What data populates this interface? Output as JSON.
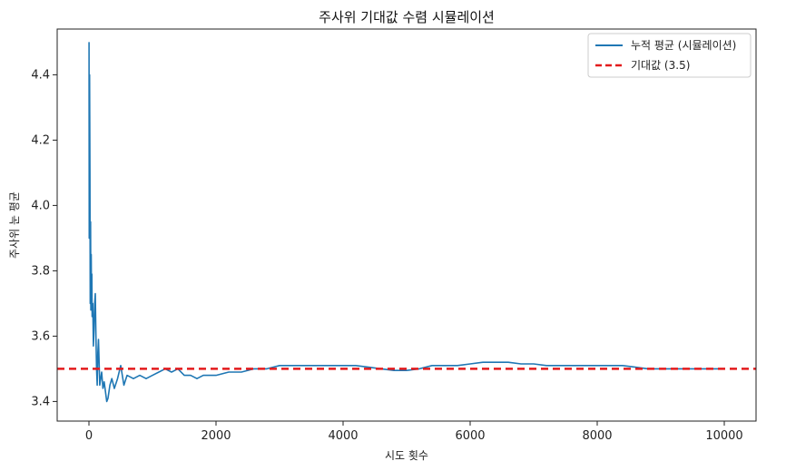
{
  "chart_data": {
    "type": "line",
    "title": "주사위 기대값 수렴 시뮬레이션",
    "xlabel": "시도 횟수",
    "ylabel": "주사위 눈 평균",
    "xlim": [
      -500,
      10500
    ],
    "ylim": [
      3.34,
      4.54
    ],
    "xticks": [
      "0",
      "2000",
      "4000",
      "6000",
      "8000",
      "10000"
    ],
    "yticks": [
      "3.4",
      "3.6",
      "3.8",
      "4.0",
      "4.2",
      "4.4"
    ],
    "legend_position": "top-right",
    "colors": {
      "series": "#1f77b4",
      "expected": "#e31a1c"
    },
    "series": [
      {
        "name": "누적 평균 (시뮬레이션)",
        "style": "solid",
        "x": [
          1,
          5,
          10,
          15,
          20,
          25,
          30,
          35,
          40,
          45,
          50,
          60,
          70,
          80,
          90,
          100,
          110,
          120,
          130,
          140,
          150,
          170,
          200,
          220,
          240,
          260,
          280,
          300,
          330,
          360,
          400,
          450,
          500,
          550,
          600,
          700,
          800,
          900,
          1000,
          1100,
          1200,
          1300,
          1400,
          1500,
          1600,
          1700,
          1800,
          1900,
          2000,
          2200,
          2400,
          2600,
          2800,
          3000,
          3200,
          3400,
          3600,
          3800,
          4000,
          4200,
          4400,
          4600,
          4800,
          5000,
          5200,
          5400,
          5600,
          5800,
          6000,
          6200,
          6400,
          6600,
          6800,
          7000,
          7200,
          7400,
          7600,
          7800,
          8000,
          8200,
          8400,
          8600,
          8800,
          9000,
          9200,
          9400,
          9600,
          9800,
          10000
        ],
        "y": [
          4.5,
          3.9,
          4.4,
          4.1,
          3.7,
          3.95,
          3.68,
          3.85,
          3.72,
          3.79,
          3.66,
          3.7,
          3.57,
          3.62,
          3.7,
          3.73,
          3.6,
          3.5,
          3.45,
          3.55,
          3.59,
          3.45,
          3.49,
          3.44,
          3.46,
          3.43,
          3.4,
          3.41,
          3.45,
          3.47,
          3.44,
          3.47,
          3.51,
          3.45,
          3.48,
          3.47,
          3.48,
          3.47,
          3.48,
          3.49,
          3.5,
          3.49,
          3.5,
          3.48,
          3.48,
          3.47,
          3.48,
          3.48,
          3.48,
          3.49,
          3.49,
          3.5,
          3.5,
          3.51,
          3.51,
          3.51,
          3.51,
          3.51,
          3.51,
          3.51,
          3.505,
          3.5,
          3.495,
          3.495,
          3.5,
          3.51,
          3.51,
          3.51,
          3.515,
          3.52,
          3.52,
          3.52,
          3.515,
          3.515,
          3.51,
          3.51,
          3.51,
          3.51,
          3.51,
          3.51,
          3.51,
          3.505,
          3.5,
          3.5,
          3.5,
          3.5,
          3.5,
          3.5,
          3.5
        ]
      },
      {
        "name": "기대값 (3.5)",
        "style": "dashed",
        "value": 3.5
      }
    ]
  }
}
